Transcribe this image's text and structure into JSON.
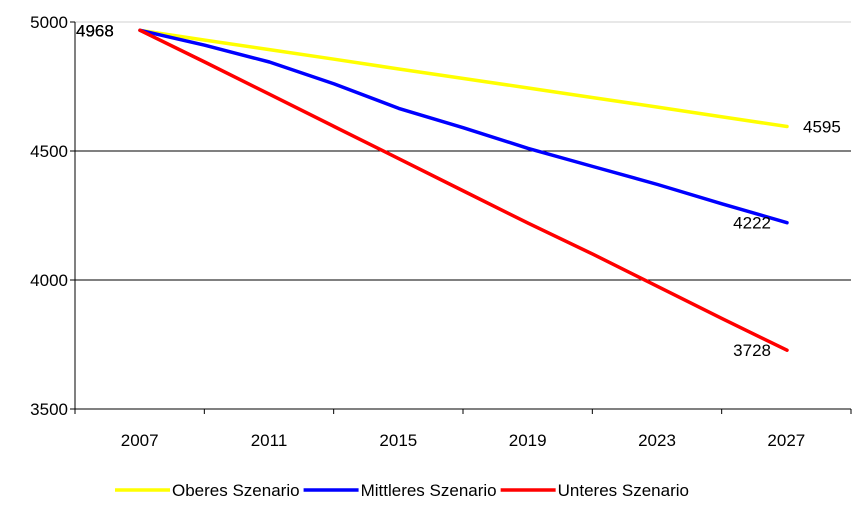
{
  "chart_data": {
    "type": "line",
    "title": "",
    "xlabel": "",
    "ylabel": "",
    "categories": [
      "2007",
      "2011",
      "2015",
      "2019",
      "2023",
      "2027"
    ],
    "x": [
      2007,
      2009,
      2011,
      2013,
      2015,
      2017,
      2019,
      2021,
      2023,
      2025,
      2027
    ],
    "ylim": [
      3500,
      5000
    ],
    "yticks": [
      3500,
      4000,
      4500,
      5000
    ],
    "grid": true,
    "legend_position": "bottom",
    "series": [
      {
        "name": "Oberes Szenario",
        "color": "#ffff00",
        "values": [
          4968,
          4930,
          4893,
          4856,
          4818,
          4781,
          4744,
          4707,
          4670,
          4632,
          4595
        ],
        "start_label": "4968",
        "end_label": "4595"
      },
      {
        "name": "Mittleres Szenario",
        "color": "#0000ff",
        "values": [
          4968,
          4910,
          4845,
          4760,
          4665,
          4590,
          4510,
          4440,
          4370,
          4295,
          4222
        ],
        "start_label": "4968",
        "end_label": "4222"
      },
      {
        "name": "Unteres Szenario",
        "color": "#ff0000",
        "values": [
          4968,
          4845,
          4720,
          4595,
          4470,
          4345,
          4220,
          4100,
          3975,
          3850,
          3728
        ],
        "start_label": "4968",
        "end_label": "3728"
      }
    ]
  }
}
